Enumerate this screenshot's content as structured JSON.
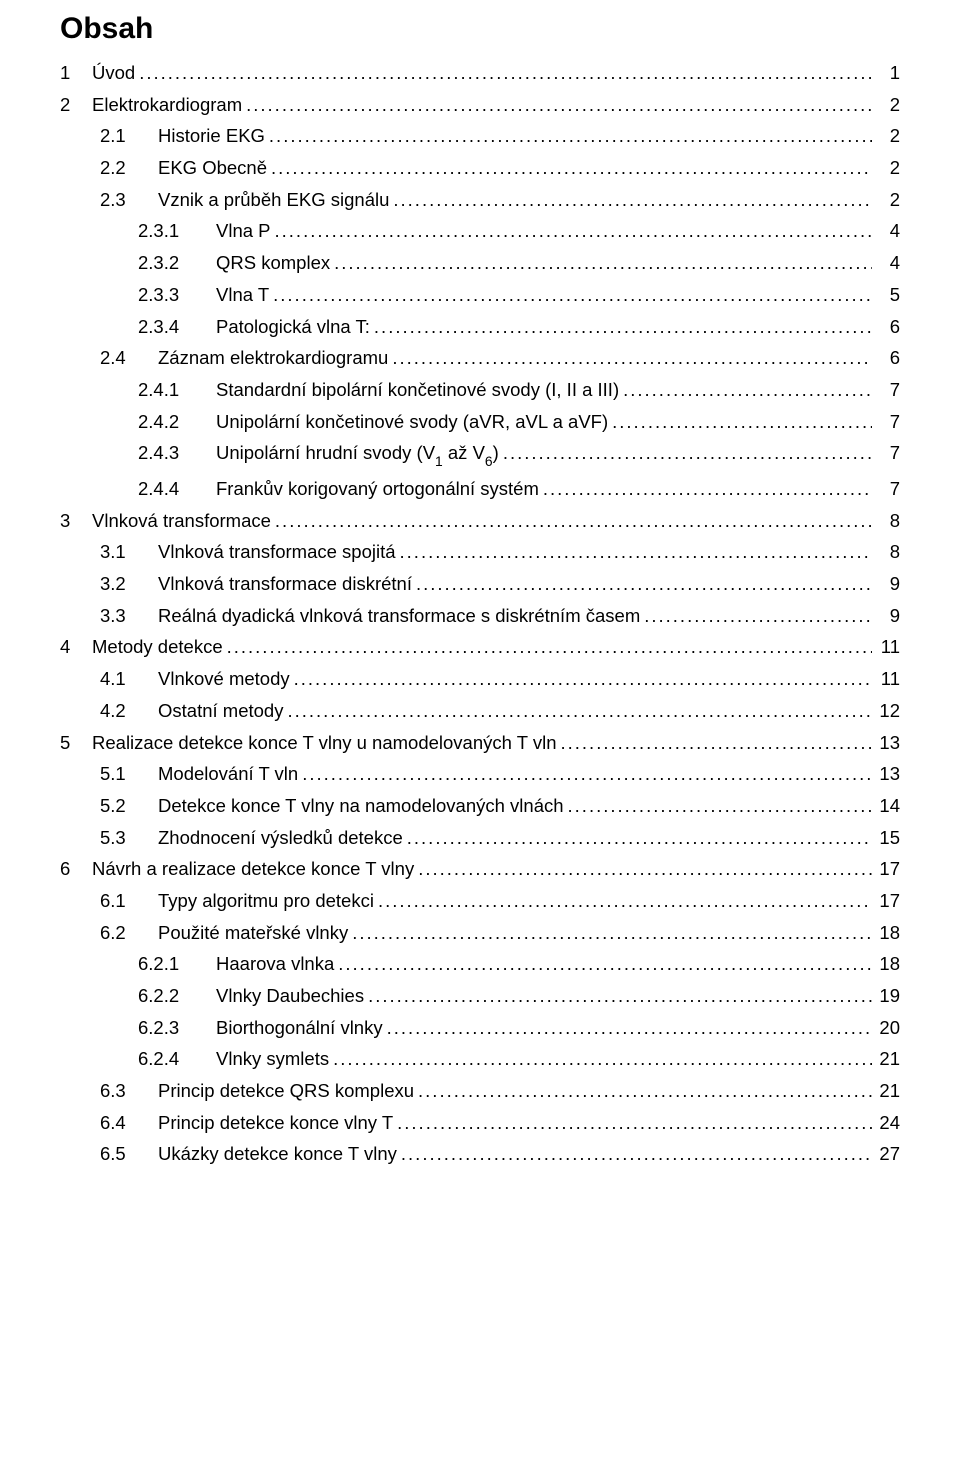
{
  "title": "Obsah",
  "dots": true,
  "font": {
    "family": "Arial",
    "title_size_pt": 22,
    "body_size_pt": 14
  },
  "colors": {
    "text": "#000000",
    "background": "#ffffff"
  },
  "entries": [
    {
      "level": 0,
      "num": "1",
      "label": "Úvod",
      "page": "1"
    },
    {
      "level": 0,
      "num": "2",
      "label": "Elektrokardiogram",
      "page": "2"
    },
    {
      "level": 1,
      "num": "2.1",
      "label": "Historie EKG",
      "page": "2"
    },
    {
      "level": 1,
      "num": "2.2",
      "label": "EKG Obecně",
      "page": "2"
    },
    {
      "level": 1,
      "num": "2.3",
      "label": "Vznik a průběh EKG signálu",
      "page": "2"
    },
    {
      "level": 2,
      "num": "2.3.1",
      "label": "Vlna P",
      "page": "4"
    },
    {
      "level": 2,
      "num": "2.3.2",
      "label": "QRS komplex",
      "page": "4"
    },
    {
      "level": 2,
      "num": "2.3.3",
      "label": "Vlna T",
      "page": "5"
    },
    {
      "level": 2,
      "num": "2.3.4",
      "label": "Patologická vlna T:",
      "page": "6"
    },
    {
      "level": 1,
      "num": "2.4",
      "label": "Záznam elektrokardiogramu",
      "page": "6"
    },
    {
      "level": 2,
      "num": "2.4.1",
      "label": "Standardní bipolární končetinové svody (I, II a III)",
      "page": "7"
    },
    {
      "level": 2,
      "num": "2.4.2",
      "label": "Unipolární končetinové svody (aVR, aVL a aVF)",
      "page": "7"
    },
    {
      "level": 2,
      "num": "2.4.3",
      "label": "Unipolární hrudní svody (V₁ až V₆)",
      "page": "7",
      "html_label": "Unipolární hrudní svody (V<span class=\"sub\">1</span> až V<span class=\"sub\">6</span>)"
    },
    {
      "level": 2,
      "num": "2.4.4",
      "label": "Frankův korigovaný ortogonální systém",
      "page": "7"
    },
    {
      "level": 0,
      "num": "3",
      "label": "Vlnková transformace",
      "page": "8"
    },
    {
      "level": 1,
      "num": "3.1",
      "label": "Vlnková transformace spojitá",
      "page": "8"
    },
    {
      "level": 1,
      "num": "3.2",
      "label": "Vlnková transformace diskrétní",
      "page": "9"
    },
    {
      "level": 1,
      "num": "3.3",
      "label": "Reálná dyadická vlnková transformace s diskrétním časem",
      "page": "9"
    },
    {
      "level": 0,
      "num": "4",
      "label": "Metody detekce",
      "page": "11"
    },
    {
      "level": 1,
      "num": "4.1",
      "label": "Vlnkové metody",
      "page": "11"
    },
    {
      "level": 1,
      "num": "4.2",
      "label": "Ostatní metody",
      "page": "12"
    },
    {
      "level": 0,
      "num": "5",
      "label": "Realizace detekce konce T vlny u namodelovaných T vln",
      "page": "13"
    },
    {
      "level": 1,
      "num": "5.1",
      "label": "Modelování T vln",
      "page": "13"
    },
    {
      "level": 1,
      "num": "5.2",
      "label": "Detekce konce T vlny na namodelovaných vlnách",
      "page": "14"
    },
    {
      "level": 1,
      "num": "5.3",
      "label": "Zhodnocení výsledků detekce",
      "page": "15"
    },
    {
      "level": 0,
      "num": "6",
      "label": "Návrh a realizace detekce konce T vlny",
      "page": "17"
    },
    {
      "level": 1,
      "num": "6.1",
      "label": "Typy algoritmu pro detekci",
      "page": "17"
    },
    {
      "level": 1,
      "num": "6.2",
      "label": "Použité mateřské vlnky",
      "page": "18"
    },
    {
      "level": 2,
      "num": "6.2.1",
      "label": "Haarova vlnka",
      "page": "18"
    },
    {
      "level": 2,
      "num": "6.2.2",
      "label": "Vlnky Daubechies",
      "page": "19"
    },
    {
      "level": 2,
      "num": "6.2.3",
      "label": "Biorthogonální vlnky",
      "page": "20"
    },
    {
      "level": 2,
      "num": "6.2.4",
      "label": "Vlnky symlets",
      "page": "21"
    },
    {
      "level": 1,
      "num": "6.3",
      "label": "Princip detekce QRS komplexu",
      "page": "21"
    },
    {
      "level": 1,
      "num": "6.4",
      "label": "Princip detekce konce vlny T",
      "page": "24"
    },
    {
      "level": 1,
      "num": "6.5",
      "label": "Ukázky detekce konce T vlny",
      "page": "27"
    }
  ]
}
